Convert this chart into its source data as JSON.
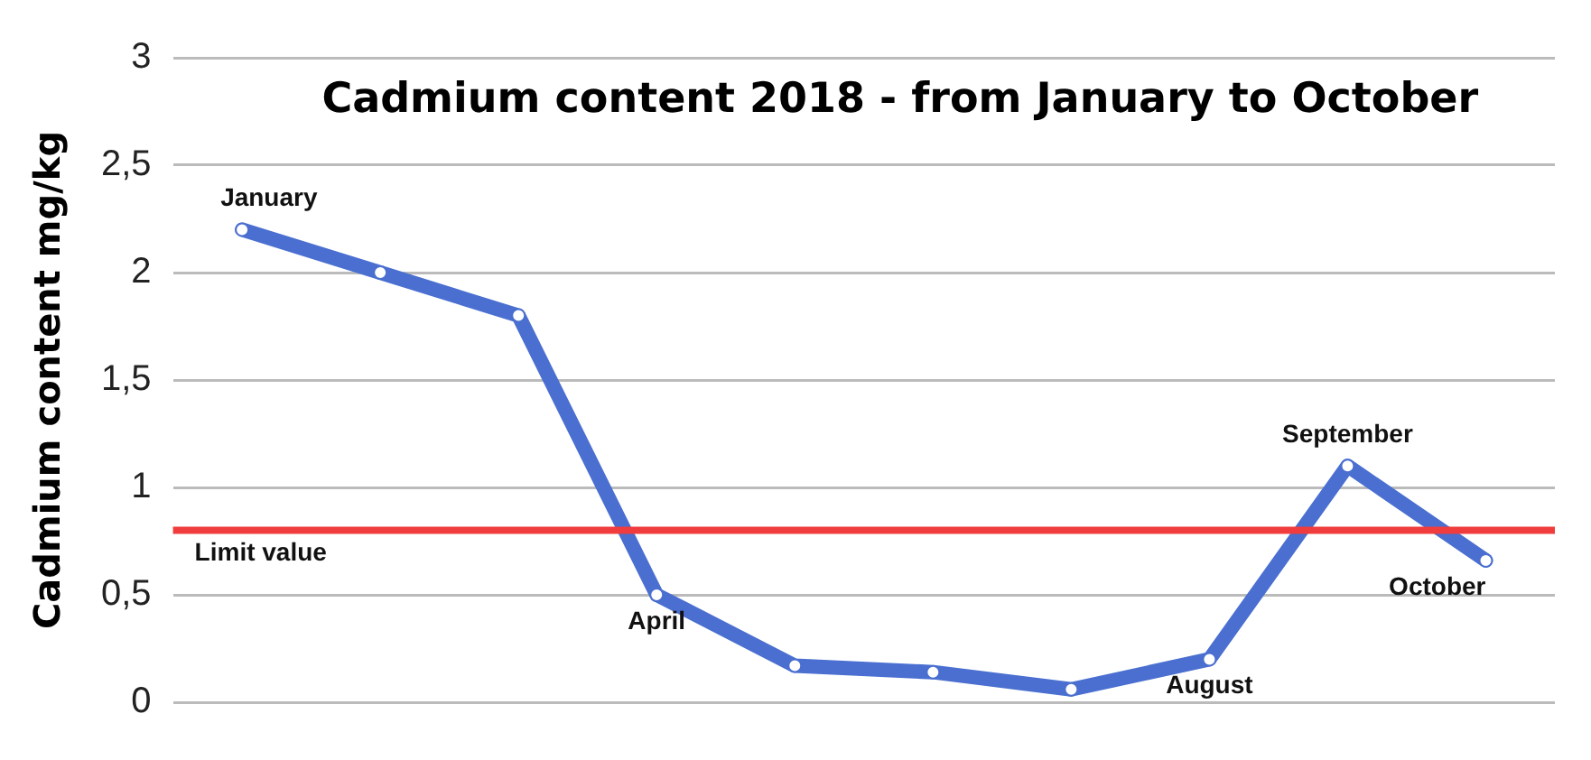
{
  "chart_data": {
    "type": "line",
    "title": "Cadmium content 2018 - from January to October",
    "ylabel": "Cadmium content mg/kg",
    "categories": [
      "January",
      null,
      null,
      "April",
      null,
      null,
      null,
      "August",
      "September",
      "October"
    ],
    "series": [
      {
        "color": "#4a6fd0",
        "values": [
          2.2,
          2.0,
          1.8,
          0.5,
          0.17,
          0.14,
          0.06,
          0.2,
          1.1,
          0.66
        ]
      }
    ],
    "ylim": [
      0,
      3
    ],
    "yticks": [
      0,
      {
        "value": 0.5,
        "label": "0,5"
      },
      1,
      {
        "value": 1.5,
        "label": "1,5"
      },
      2,
      {
        "value": 2.5,
        "label": "2,5"
      },
      3
    ],
    "ref_lines": [
      {
        "axis": "y",
        "value": 0.8,
        "label": "Limit value",
        "color": "#f03c3c"
      }
    ],
    "grid": "y",
    "legend": false,
    "tick_labels": "y",
    "marker": "circle",
    "line_style": "solid"
  }
}
